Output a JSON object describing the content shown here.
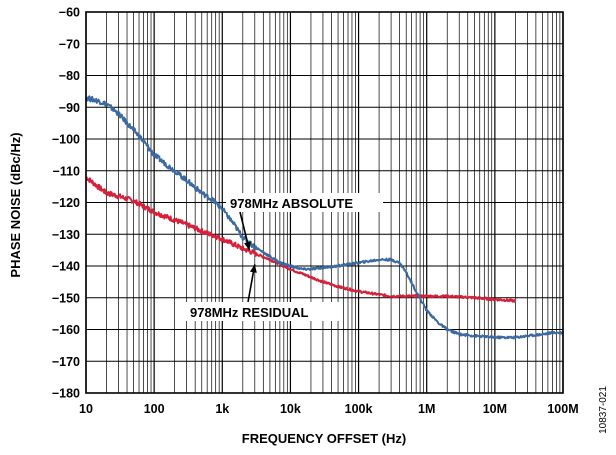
{
  "chart_data": {
    "type": "line",
    "title": "",
    "xlabel": "FREQUENCY OFFSET (Hz)",
    "ylabel": "PHASE NOISE (dBc/Hz)",
    "x_scale": "log",
    "xlim": [
      10,
      100000000
    ],
    "ylim": [
      -180,
      -60
    ],
    "grid": true,
    "x_ticks": [
      {
        "value": 10,
        "label": "10"
      },
      {
        "value": 100,
        "label": "100"
      },
      {
        "value": 1000,
        "label": "1k"
      },
      {
        "value": 10000,
        "label": "10k"
      },
      {
        "value": 100000,
        "label": "100k"
      },
      {
        "value": 1000000,
        "label": "1M"
      },
      {
        "value": 10000000,
        "label": "10M"
      },
      {
        "value": 100000000,
        "label": "100M"
      }
    ],
    "y_ticks": [
      {
        "value": -60,
        "label": "−60"
      },
      {
        "value": -70,
        "label": "−70"
      },
      {
        "value": -80,
        "label": "−80"
      },
      {
        "value": -90,
        "label": "−90"
      },
      {
        "value": -100,
        "label": "−100"
      },
      {
        "value": -110,
        "label": "−110"
      },
      {
        "value": -120,
        "label": "−120"
      },
      {
        "value": -130,
        "label": "−130"
      },
      {
        "value": -140,
        "label": "−140"
      },
      {
        "value": -150,
        "label": "−150"
      },
      {
        "value": -160,
        "label": "−160"
      },
      {
        "value": -170,
        "label": "−170"
      },
      {
        "value": -180,
        "label": "−180"
      }
    ],
    "series": [
      {
        "name": "978MHz ABSOLUTE",
        "color": "#3b6aa0",
        "x": [
          10,
          15,
          20,
          30,
          40,
          60,
          100,
          150,
          200,
          300,
          500,
          700,
          1000,
          1500,
          2000,
          3000,
          5000,
          7000,
          10000,
          15000,
          20000,
          30000,
          50000,
          70000,
          100000,
          200000,
          300000,
          400000,
          500000,
          700000,
          1000000,
          1500000,
          2000000,
          3000000,
          5000000,
          10000000,
          20000000,
          30000000,
          50000000,
          70000000,
          100000000
        ],
        "y": [
          -87,
          -88,
          -89,
          -92,
          -95,
          -99,
          -105,
          -108,
          -110,
          -113,
          -117,
          -119,
          -122,
          -127,
          -131,
          -134,
          -137,
          -139,
          -140,
          -141,
          -141,
          -140.5,
          -140,
          -139.5,
          -139,
          -138,
          -138,
          -139,
          -142,
          -148,
          -154,
          -158,
          -160,
          -161.5,
          -162,
          -162.5,
          -162.5,
          -162,
          -161.5,
          -161,
          -161
        ]
      },
      {
        "name": "978MHz RESIDUAL",
        "color": "#d6203a",
        "x": [
          10,
          15,
          20,
          30,
          50,
          100,
          200,
          300,
          500,
          1000,
          2000,
          3000,
          5000,
          10000,
          20000,
          30000,
          50000,
          100000,
          200000,
          300000,
          500000,
          1000000,
          2000000,
          5000000,
          10000000,
          20000000
        ],
        "y": [
          -112,
          -115,
          -117,
          -118,
          -119.5,
          -123,
          -125.5,
          -127,
          -129,
          -131.5,
          -134.5,
          -136,
          -138,
          -141,
          -143.5,
          -145,
          -146.5,
          -148,
          -149,
          -149.5,
          -149.5,
          -149.5,
          -149.5,
          -150,
          -150.5,
          -151
        ]
      }
    ],
    "annotations": [
      {
        "text": "978MHz ABSOLUTE",
        "target": [
          2500,
          -135
        ]
      },
      {
        "text": "978MHz RESIDUAL",
        "target": [
          3000,
          -139.5
        ]
      }
    ],
    "figure_id": "10837-021"
  }
}
